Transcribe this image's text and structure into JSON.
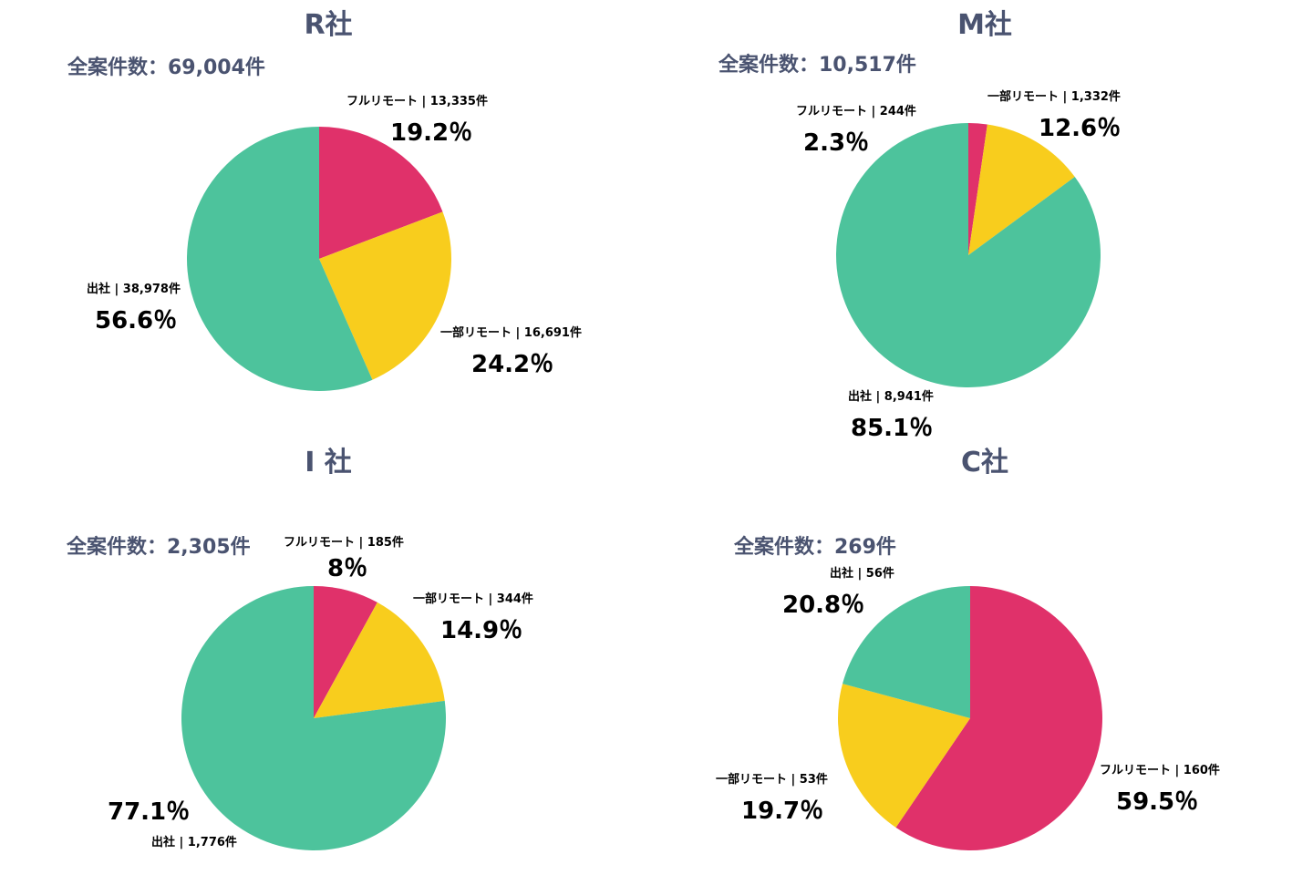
{
  "colors": {
    "full_remote": "#e0316a",
    "partial_remote": "#f8cd1d",
    "office": "#4dc39c",
    "title_text": "#4a5370"
  },
  "chart_data": [
    {
      "type": "pie",
      "title": "R社",
      "total_text": "全案件数：69,004件",
      "slices": [
        {
          "label": "フルリモート | 13,335件",
          "value": 19.2,
          "pct_text": "19.2％",
          "color": "#e0316a"
        },
        {
          "label": "一部リモート | 16,691件",
          "value": 24.2,
          "pct_text": "24.2％",
          "color": "#f8cd1d"
        },
        {
          "label": "出社 | 38,978件",
          "value": 56.6,
          "pct_text": "56.6％",
          "color": "#4dc39c"
        }
      ]
    },
    {
      "type": "pie",
      "title": "M社",
      "total_text": "全案件数：10,517件",
      "slices": [
        {
          "label": "フルリモート | 244件",
          "value": 2.3,
          "pct_text": "2.3％",
          "color": "#e0316a"
        },
        {
          "label": "一部リモート | 1,332件",
          "value": 12.6,
          "pct_text": "12.6％",
          "color": "#f8cd1d"
        },
        {
          "label": "出社 | 8,941件",
          "value": 85.1,
          "pct_text": "85.1％",
          "color": "#4dc39c"
        }
      ]
    },
    {
      "type": "pie",
      "title": "I 社",
      "total_text": "全案件数：2,305件",
      "slices": [
        {
          "label": "フルリモート | 185件",
          "value": 8,
          "pct_text": "8％",
          "color": "#e0316a"
        },
        {
          "label": "一部リモート | 344件",
          "value": 14.9,
          "pct_text": "14.9％",
          "color": "#f8cd1d"
        },
        {
          "label": "出社 | 1,776件",
          "value": 77.1,
          "pct_text": "77.1％",
          "color": "#4dc39c"
        }
      ]
    },
    {
      "type": "pie",
      "title": "C社",
      "total_text": "全案件数：269件",
      "slices": [
        {
          "label": "フルリモート | 160件",
          "value": 59.5,
          "pct_text": "59.5％",
          "color": "#e0316a"
        },
        {
          "label": "一部リモート | 53件",
          "value": 19.7,
          "pct_text": "19.7％",
          "color": "#f8cd1d"
        },
        {
          "label": "出社 | 56件",
          "value": 20.8,
          "pct_text": "20.8％",
          "color": "#4dc39c"
        }
      ]
    }
  ]
}
